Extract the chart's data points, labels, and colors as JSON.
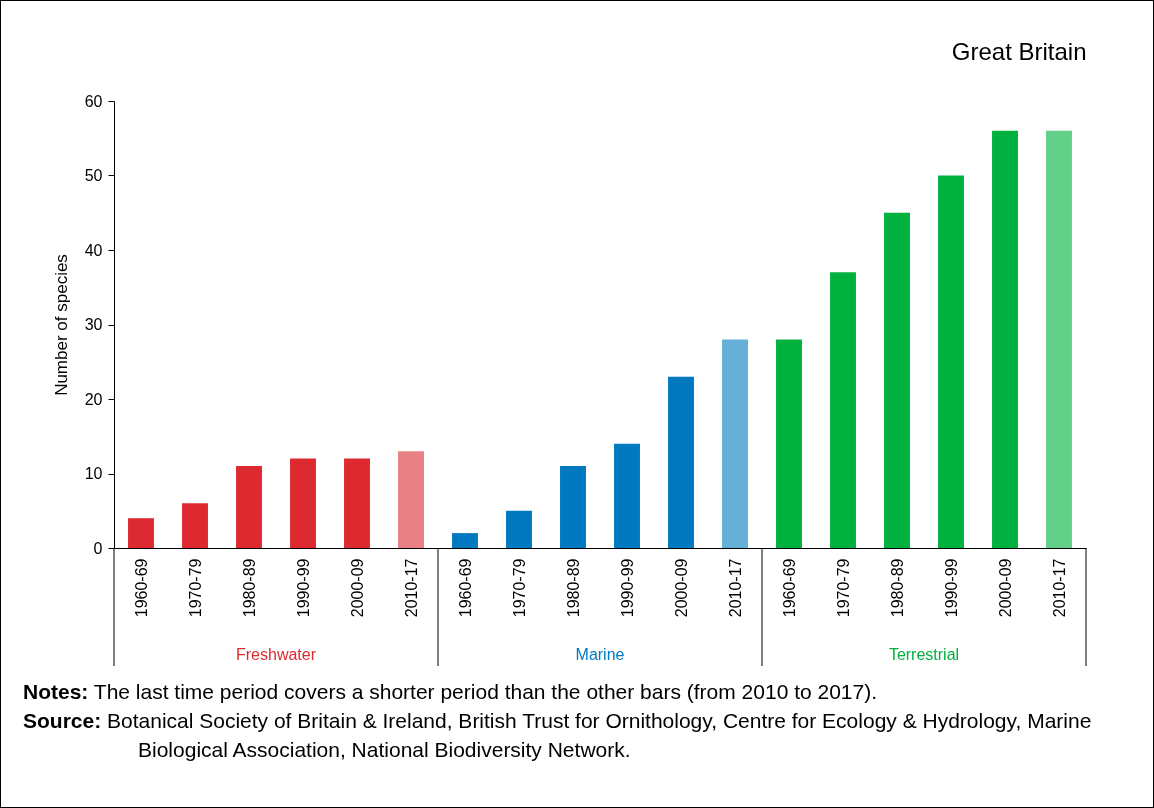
{
  "chart_data": {
    "type": "bar",
    "title": "Great Britain",
    "ylabel": "Number of species",
    "categories": [
      "1960-69",
      "1970-79",
      "1980-89",
      "1990-99",
      "2000-09",
      "2010-17",
      "1960-69",
      "1970-79",
      "1980-89",
      "1990-99",
      "2000-09",
      "2010-17",
      "1960-69",
      "1970-79",
      "1980-89",
      "1990-99",
      "2000-09",
      "2010-17"
    ],
    "series": [
      {
        "name": "Freshwater",
        "colors": [
          "#dc2a30",
          "#dc2a30",
          "#dc2a30",
          "#dc2a30",
          "#dc2a30",
          "#e88084",
          null,
          null,
          null,
          null,
          null,
          null,
          null,
          null,
          null,
          null,
          null,
          null
        ],
        "values": [
          4,
          6,
          11,
          12,
          12,
          13,
          null,
          null,
          null,
          null,
          null,
          null,
          null,
          null,
          null,
          null,
          null,
          null
        ]
      },
      {
        "name": "Marine",
        "colors": [
          null,
          null,
          null,
          null,
          null,
          null,
          "#0079c1",
          "#0079c1",
          "#0079c1",
          "#0079c1",
          "#0079c1",
          "#64b0d9",
          null,
          null,
          null,
          null,
          null,
          null
        ],
        "values": [
          null,
          null,
          null,
          null,
          null,
          null,
          2,
          5,
          11,
          14,
          23,
          28,
          null,
          null,
          null,
          null,
          null,
          null
        ]
      },
      {
        "name": "Terrestrial",
        "colors": [
          null,
          null,
          null,
          null,
          null,
          null,
          null,
          null,
          null,
          null,
          null,
          null,
          "#00b140",
          "#00b140",
          "#00b140",
          "#00b140",
          "#00b140",
          "#63d08a"
        ],
        "values": [
          null,
          null,
          null,
          null,
          null,
          null,
          null,
          null,
          null,
          null,
          null,
          null,
          28,
          37,
          45,
          50,
          56,
          56
        ]
      }
    ],
    "ylim": [
      0,
      60
    ],
    "yticks": [
      0,
      10,
      20,
      30,
      40,
      50,
      60
    ],
    "grid": false,
    "legend": false,
    "annotations": [
      "Notes: The last time period covers a shorter period than the other bars (from 2010 to 2017).",
      "Source: Botanical Society of Britain & Ireland, British Trust for Ornithology, Centre for Ecology & Hydrology, Marine Biological Association, National Biodiversity Network."
    ]
  }
}
